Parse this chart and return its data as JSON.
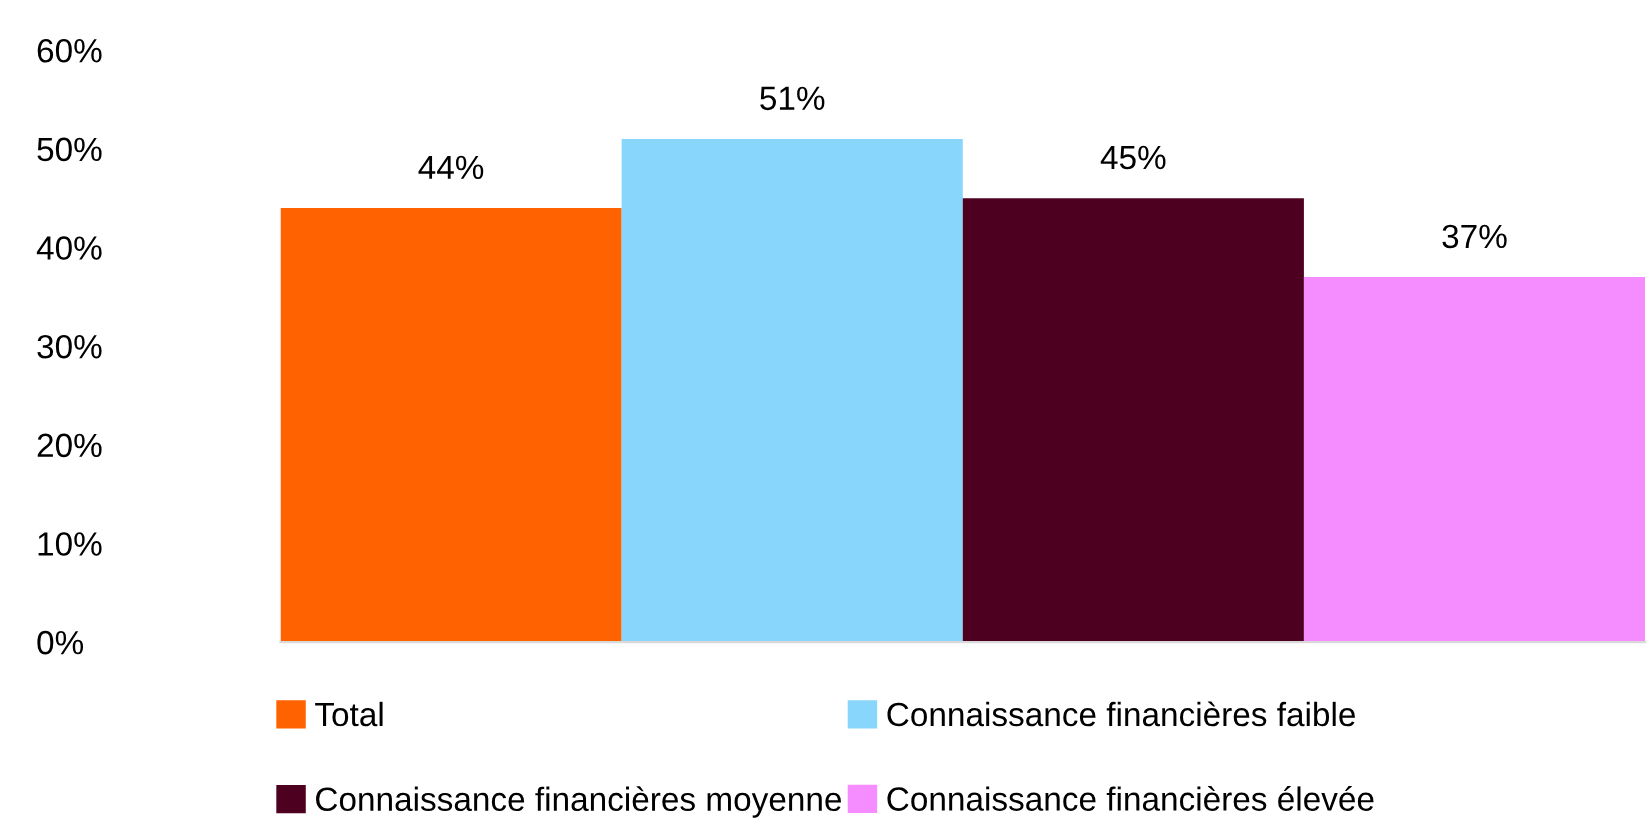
{
  "chart_data": {
    "type": "bar",
    "categories": [
      null
    ],
    "series": [
      {
        "name": "Total",
        "color": "#ff6200",
        "values": [
          44
        ],
        "value_labels": [
          "44%"
        ]
      },
      {
        "name": "Connaissance financières faible",
        "color": "#89d6fd",
        "values": [
          51
        ],
        "value_labels": [
          "51%"
        ]
      },
      {
        "name": "Connaissance financières moyenne",
        "color": "#4d0020",
        "values": [
          45
        ],
        "value_labels": [
          "45%"
        ]
      },
      {
        "name": "Connaissance financières élevée",
        "color": "#f58cff",
        "values": [
          37
        ],
        "value_labels": [
          "37%"
        ]
      }
    ],
    "ylim": [
      0,
      60
    ],
    "yticks": [
      {
        "value": 0,
        "label": "0%"
      },
      {
        "value": 10,
        "label": "10%"
      },
      {
        "value": 20,
        "label": "20%"
      },
      {
        "value": 30,
        "label": "30%"
      },
      {
        "value": 40,
        "label": "40%"
      },
      {
        "value": 50,
        "label": "50%"
      },
      {
        "value": 60,
        "label": "60%"
      }
    ],
    "grid": false,
    "legend": "bottom"
  }
}
